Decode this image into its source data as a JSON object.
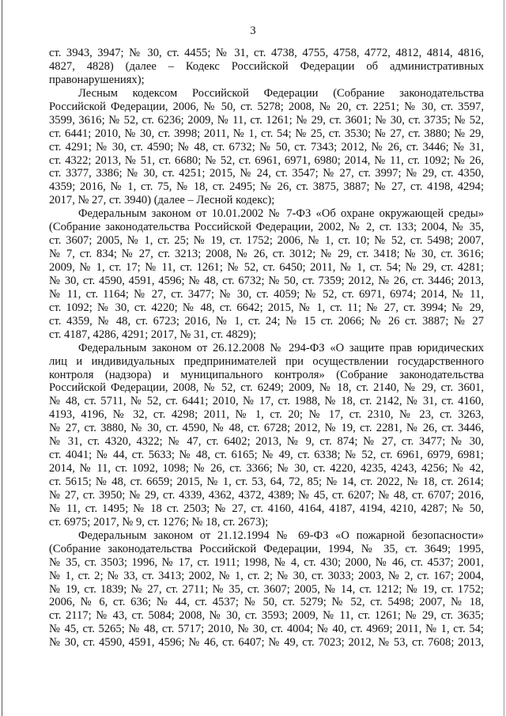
{
  "page_number": "3",
  "paragraphs": [
    {
      "indent": false,
      "lines": [
        "ст. 3943, 3947; № 30, ст. 4455; № 31, ст. 4738, 4755, 4758, 4772, 4812, 4814, 4816,",
        "4827, 4828) (далее – Кодекс Российской Федерации об административных",
        "правонарушениях);"
      ]
    },
    {
      "indent": true,
      "lines": [
        "Лесным кодексом Российской Федерации (Собрание законодательства",
        "Российской Федерации, 2006, № 50, ст. 5278; 2008, № 20, ст. 2251; № 30, ст. 3597,",
        "3599, 3616; № 52, ст. 6236; 2009, № 11, ст. 1261; № 29, ст. 3601; № 30, ст. 3735; № 52,",
        "ст. 6441; 2010, № 30, ст. 3998; 2011, № 1, ст. 54; № 25, ст. 3530; № 27, ст. 3880; № 29,",
        "ст. 4291; № 30, ст. 4590; № 48, ст. 6732; № 50, ст. 7343; 2012, № 26, ст. 3446; № 31,",
        "ст. 4322; 2013, № 51, ст. 6680; № 52, ст. 6961, 6971, 6980; 2014, № 11, ст. 1092; № 26,",
        "ст. 3377, 3386; № 30, ст. 4251; 2015, № 24, ст. 3547; № 27, ст. 3997; № 29, ст. 4350,",
        "4359; 2016, № 1, ст. 75, № 18, ст. 2495; № 26, ст. 3875, 3887; № 27, ст. 4198, 4294;",
        "2017, № 27, ст. 3940) (далее – Лесной кодекс);"
      ]
    },
    {
      "indent": true,
      "lines": [
        "Федеральным законом от 10.01.2002 № 7-ФЗ «Об охране окружающей среды»",
        "(Собрание законодательства Российской Федерации, 2002, № 2, ст. 133; 2004, № 35,",
        "ст. 3607; 2005, № 1, ст. 25; № 19, ст. 1752; 2006, № 1, ст. 10; № 52, ст. 5498; 2007,",
        "№ 7, ст. 834; № 27, ст. 3213; 2008, № 26, ст. 3012; № 29, ст. 3418; № 30, ст. 3616;",
        "2009, № 1, ст. 17; № 11, ст. 1261; № 52, ст. 6450; 2011, № 1, ст. 54; № 29, ст. 4281;",
        "№ 30, ст. 4590, 4591, 4596; № 48, ст. 6732; № 50, ст. 7359; 2012, № 26, ст. 3446; 2013,",
        "№ 11, ст. 1164; № 27, ст. 3477; № 30, ст. 4059; № 52, ст. 6971, 6974; 2014, № 11,",
        "ст. 1092; № 30, ст. 4220; № 48, ст. 6642; 2015, № 1, ст. 11; № 27, ст. 3994; № 29,",
        "ст. 4359, № 48, ст. 6723; 2016, № 1, ст. 24; № 15 ст. 2066; № 26 ст. 3887; № 27",
        "ст. 4187, 4286, 4291; 2017, № 31, ст. 4829);"
      ]
    },
    {
      "indent": true,
      "lines": [
        "Федеральным законом от 26.12.2008 № 294-ФЗ «О защите прав юридических",
        "лиц и индивидуальных предпринимателей при осуществлении государственного",
        "контроля (надзора) и муниципального контроля» (Собрание законодательства",
        "Российской Федерации, 2008, № 52, ст. 6249; 2009, № 18, ст. 2140, № 29, ст. 3601,",
        "№ 48, ст. 5711, № 52, ст. 6441; 2010, № 17, ст. 1988, № 18, ст. 2142, № 31, ст. 4160,",
        "4193, 4196, № 32, ст. 4298; 2011, № 1, ст. 20; № 17, ст. 2310, № 23, ст. 3263,",
        "№ 27, ст. 3880, № 30, ст. 4590, № 48, ст. 6728; 2012, № 19, ст. 2281, № 26, ст. 3446,",
        "№ 31, ст. 4320, 4322; № 47, ст. 6402; 2013, № 9, ст. 874; № 27, ст. 3477; № 30,",
        "ст. 4041; № 44, ст. 5633; № 48, ст. 6165; № 49, ст. 6338; № 52, ст. 6961, 6979, 6981;",
        "2014, № 11, ст. 1092, 1098; № 26, ст. 3366; № 30, ст. 4220, 4235, 4243, 4256; № 42,",
        "ст. 5615; № 48, ст. 6659; 2015, № 1, ст. 53, 64, 72, 85; № 14, ст. 2022, № 18, ст. 2614;",
        "№ 27, ст. 3950; № 29, ст. 4339, 4362, 4372, 4389; № 45, ст. 6207; № 48, ст. 6707; 2016,",
        "№ 11, ст. 1495; № 18 ст. 2503; № 27, ст. 4160, 4164, 4187, 4194, 4210, 4287; № 50,",
        "ст. 6975; 2017, № 9, ст. 1276; № 18, ст. 2673);"
      ]
    },
    {
      "indent": true,
      "continues": true,
      "lines": [
        "Федеральным законом от 21.12.1994 № 69-ФЗ «О пожарной безопасности»",
        "(Собрание законодательства Российской Федерации, 1994, № 35, ст. 3649; 1995,",
        "№ 35, ст. 3503; 1996, № 17, ст. 1911; 1998, № 4, ст. 430; 2000, № 46, ст. 4537; 2001,",
        "№ 1, ст. 2; № 33, ст. 3413; 2002, № 1, ст. 2; № 30, ст. 3033; 2003, № 2, ст. 167; 2004,",
        "№ 19, ст. 1839; № 27, ст. 2711; № 35, ст. 3607; 2005, № 14, ст. 1212; № 19, ст. 1752;",
        "2006, № 6, ст. 636; № 44, ст. 4537; № 50, ст. 5279; № 52, ст. 5498; 2007, № 18,",
        "ст. 2117; № 43, ст. 5084; 2008, № 30, ст. 3593; 2009, № 11, ст. 1261; № 29, ст. 3635;",
        "№ 45, ст. 5265; № 48, ст. 5717; 2010, № 30, ст. 4004; № 40, ст. 4969; 2011, № 1, ст. 54;",
        "№ 30, ст. 4590, 4591, 4596; № 46, ст. 6407; № 49, ст. 7023; 2012, № 53, ст. 7608; 2013,"
      ]
    }
  ]
}
